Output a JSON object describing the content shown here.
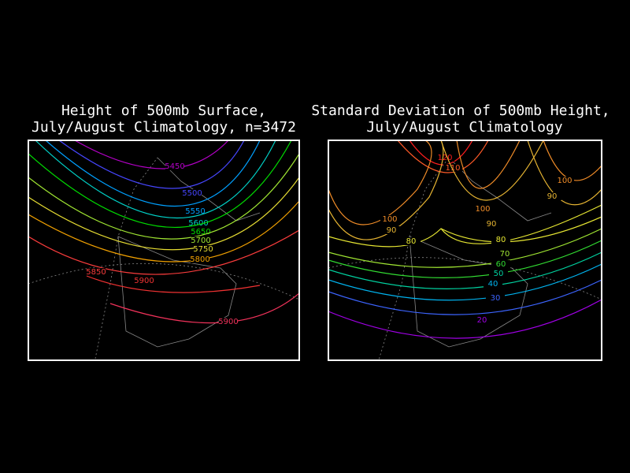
{
  "panels": [
    {
      "title": [
        "Height of 500mb Surface,",
        "July/August Climatology, n=3472"
      ],
      "contours": [
        {
          "level": 5450,
          "color": "#b400c8"
        },
        {
          "level": 5500,
          "color": "#4646ff"
        },
        {
          "level": 5550,
          "color": "#00a0ff"
        },
        {
          "level": 5600,
          "color": "#00d2c8"
        },
        {
          "level": 5650,
          "color": "#00dc00"
        },
        {
          "level": 5700,
          "color": "#a0e632"
        },
        {
          "level": 5750,
          "color": "#e6dc32"
        },
        {
          "level": 5800,
          "color": "#f0a000"
        },
        {
          "level": 5850,
          "color": "#fa3c3c"
        },
        {
          "level": 5900,
          "color": "#f03232"
        },
        {
          "level": 5900,
          "color": "#f0325a"
        }
      ]
    },
    {
      "title": [
        "Standard Deviation of 500mb Height,",
        "July/August Climatology"
      ],
      "contours": [
        {
          "level": 120,
          "color": "#ff1e1e"
        },
        {
          "level": 110,
          "color": "#ff5a28"
        },
        {
          "level": 100,
          "color": "#f08c28"
        },
        {
          "level": 90,
          "color": "#e6b432"
        },
        {
          "level": 100,
          "color": "#f08c28"
        },
        {
          "level": 90,
          "color": "#e6b432"
        },
        {
          "level": 100,
          "color": "#f08c28"
        },
        {
          "level": 90,
          "color": "#e6b432"
        },
        {
          "level": 80,
          "color": "#e6e632"
        },
        {
          "level": 80,
          "color": "#e6e632"
        },
        {
          "level": 70,
          "color": "#a0e632"
        },
        {
          "level": 60,
          "color": "#32dc32"
        },
        {
          "level": 50,
          "color": "#00d2a0"
        },
        {
          "level": 40,
          "color": "#00b4f0"
        },
        {
          "level": 30,
          "color": "#3c64ff"
        },
        {
          "level": 20,
          "color": "#a000e6"
        }
      ]
    }
  ]
}
